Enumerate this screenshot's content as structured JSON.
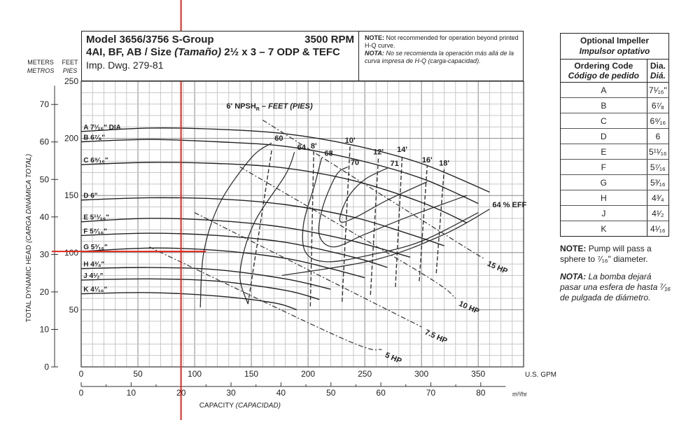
{
  "header": {
    "model": "Model 3656/3756 S-Group",
    "rpm": "3500 RPM",
    "line2_a": "4AI, BF, AB / Size ",
    "line2_b": "(Tamaño)",
    "line2_c": "2½ x 3 – 7 ODP & TEFC",
    "line3": "Imp. Dwg. 279-81",
    "note_label": "NOTE:",
    "note_text": "Not recommended for operation beyond printed H-Q curve.",
    "nota_label": "NOTA:",
    "nota_text": "No se recomienda la operación más allá de la curva impresa de H-Q (carga-capacidad)."
  },
  "impeller_table": {
    "title": "Optional Impeller",
    "title_es": "Impulsor optativo",
    "col1": "Ordering Code",
    "col1_es": "Código de pedido",
    "col2": "Dia.",
    "col2_es": "Diá.",
    "rows": [
      {
        "code": "A",
        "dia": "7¹⁄₁₆\""
      },
      {
        "code": "B",
        "dia": "6⁷⁄₈"
      },
      {
        "code": "C",
        "dia": "6⁹⁄₁₆"
      },
      {
        "code": "D",
        "dia": "6"
      },
      {
        "code": "E",
        "dia": "5¹¹⁄₁₆"
      },
      {
        "code": "F",
        "dia": "5⁷⁄₁₆"
      },
      {
        "code": "G",
        "dia": "5³⁄₁₆"
      },
      {
        "code": "H",
        "dia": "4³⁄₄"
      },
      {
        "code": "J",
        "dia": "4¹⁄₂"
      },
      {
        "code": "K",
        "dia": "4¹⁄₁₆"
      }
    ]
  },
  "notes": {
    "note_label": "NOTE:",
    "note_text": "Pump will pass a sphere to ⁷⁄₁₆\" diameter.",
    "nota_label": "NOTA:",
    "nota_text": "La bomba dejará pasar una esfera de hasta ⁷⁄₁₆ de pulgada de diámetro."
  },
  "chart_data": {
    "type": "line",
    "title": "Model 3656/3756 S-Group 3500 RPM",
    "xlabel": "CAPACITY",
    "xlabel_es": "(CAPACIDAD)",
    "ylabel": "TOTAL DYNAMIC HEAD",
    "ylabel_es": "(CARGA DINÁMICA TOTAL)",
    "x_unit": "U.S. GPM",
    "x2_unit": "m³/hr",
    "y_unit_ft": "FEET",
    "y_unit_ft_es": "PIES",
    "y_unit_m": "METERS",
    "y_unit_m_es": "METROS",
    "xlim": [
      0,
      390
    ],
    "ylim": [
      0,
      250
    ],
    "x_ticks": [
      0,
      50,
      100,
      150,
      200,
      250,
      300,
      350
    ],
    "y_ticks": [
      50,
      100,
      150,
      200,
      250
    ],
    "x2_ticks": [
      0,
      10,
      20,
      30,
      40,
      50,
      60,
      70,
      80
    ],
    "y2_ticks": [
      0,
      10,
      20,
      30,
      40,
      50,
      60,
      70
    ],
    "impeller_curves": [
      {
        "label": "A 7¹⁄₁₆\" DIA.",
        "points": [
          [
            0,
            206
          ],
          [
            60,
            209
          ],
          [
            120,
            208
          ],
          [
            180,
            204
          ],
          [
            240,
            194
          ],
          [
            300,
            178
          ],
          [
            360,
            153
          ]
        ]
      },
      {
        "label": "B 6⁷⁄₈\"",
        "points": [
          [
            0,
            197
          ],
          [
            60,
            199
          ],
          [
            120,
            197
          ],
          [
            180,
            193
          ],
          [
            240,
            182
          ],
          [
            300,
            165
          ],
          [
            350,
            143
          ]
        ]
      },
      {
        "label": "C 6⁹⁄₁₆\"",
        "points": [
          [
            0,
            177
          ],
          [
            60,
            179
          ],
          [
            120,
            178
          ],
          [
            180,
            174
          ],
          [
            240,
            163
          ],
          [
            300,
            144
          ],
          [
            340,
            126
          ]
        ]
      },
      {
        "label": "D 6\"",
        "points": [
          [
            0,
            146
          ],
          [
            60,
            148
          ],
          [
            120,
            147
          ],
          [
            180,
            142
          ],
          [
            240,
            131
          ],
          [
            290,
            116
          ],
          [
            320,
            106
          ]
        ]
      },
      {
        "label": "E 5¹¹⁄₁₆\"",
        "points": [
          [
            0,
            127
          ],
          [
            60,
            130
          ],
          [
            120,
            128
          ],
          [
            180,
            122
          ],
          [
            240,
            110
          ],
          [
            290,
            96
          ]
        ]
      },
      {
        "label": "F 5⁷⁄₁₆\"",
        "points": [
          [
            0,
            115
          ],
          [
            60,
            117
          ],
          [
            120,
            115
          ],
          [
            180,
            109
          ],
          [
            240,
            96
          ],
          [
            270,
            87
          ]
        ]
      },
      {
        "label": "G 5³⁄₁₆\"",
        "points": [
          [
            0,
            101
          ],
          [
            60,
            104
          ],
          [
            120,
            102
          ],
          [
            180,
            95
          ],
          [
            220,
            86
          ],
          [
            250,
            78
          ]
        ]
      },
      {
        "label": "H 4³⁄₄\"",
        "points": [
          [
            0,
            86
          ],
          [
            60,
            87
          ],
          [
            120,
            85
          ],
          [
            180,
            77
          ],
          [
            220,
            68
          ]
        ]
      },
      {
        "label": "J 4¹⁄₂\"",
        "points": [
          [
            0,
            76
          ],
          [
            60,
            77
          ],
          [
            120,
            75
          ],
          [
            180,
            67
          ],
          [
            210,
            59
          ]
        ]
      },
      {
        "label": "K 4¹⁄₁₆\"",
        "points": [
          [
            0,
            64
          ],
          [
            60,
            65
          ],
          [
            120,
            62
          ],
          [
            170,
            56
          ],
          [
            190,
            50
          ]
        ]
      }
    ],
    "efficiency_curves": [
      {
        "label": "60",
        "points": [
          [
            105,
            52
          ],
          [
            108,
            100
          ],
          [
            122,
            143
          ],
          [
            150,
            183
          ],
          [
            168,
            196
          ]
        ]
      },
      {
        "label": "64",
        "points": [
          [
            147,
            55
          ],
          [
            140,
            82
          ],
          [
            152,
            125
          ],
          [
            180,
            168
          ],
          [
            188,
            188
          ]
        ]
      },
      {
        "label": "68",
        "points": [
          [
            350,
            135
          ],
          [
            300,
            110
          ],
          [
            255,
            98
          ],
          [
            217,
            92
          ],
          [
            198,
            100
          ],
          [
            196,
            125
          ],
          [
            206,
            160
          ],
          [
            212,
            183
          ]
        ]
      },
      {
        "label": "70",
        "points": [
          [
            340,
            150
          ],
          [
            290,
            132
          ],
          [
            250,
            116
          ],
          [
            223,
            105
          ],
          [
            210,
            115
          ],
          [
            213,
            140
          ],
          [
            225,
            168
          ],
          [
            235,
            175
          ]
        ]
      },
      {
        "label": "71",
        "points": [
          [
            305,
            162
          ],
          [
            270,
            146
          ],
          [
            240,
            130
          ],
          [
            228,
            128
          ],
          [
            235,
            148
          ],
          [
            250,
            164
          ],
          [
            270,
            174
          ]
        ]
      },
      {
        "label": "64 % EFF",
        "points": [
          [
            177,
            80
          ],
          [
            260,
            94
          ],
          [
            320,
            116
          ],
          [
            360,
            138
          ]
        ]
      }
    ],
    "npsh_lines": [
      {
        "label": "8'",
        "x": [
          202,
          205
        ],
        "y": [
          53,
          188
        ]
      },
      {
        "label": "10'",
        "x": [
          230,
          237
        ],
        "y": [
          57,
          193
        ]
      },
      {
        "label": "12'",
        "x": [
          255,
          262
        ],
        "y": [
          63,
          183
        ]
      },
      {
        "label": "14'",
        "x": [
          277,
          283
        ],
        "y": [
          70,
          185
        ]
      },
      {
        "label": "16'",
        "x": [
          298,
          305
        ],
        "y": [
          75,
          176
        ]
      },
      {
        "label": "18'",
        "x": [
          313,
          320
        ],
        "y": [
          82,
          173
        ]
      }
    ],
    "npsh_title": "6' NPSH",
    "npsh_sub": "R",
    "npsh_unit": "– FEET (PIES)",
    "hp_lines": [
      {
        "label": "15 HP",
        "points": [
          [
            160,
            216
          ],
          [
            330,
            110
          ],
          [
            355,
            95
          ]
        ]
      },
      {
        "label": "10 HP",
        "points": [
          [
            140,
            175
          ],
          [
            300,
            82
          ],
          [
            330,
            60
          ]
        ]
      },
      {
        "label": "7.5 HP",
        "points": [
          [
            100,
            135
          ],
          [
            270,
            50
          ],
          [
            300,
            35
          ]
        ]
      },
      {
        "label": "5 HP",
        "points": [
          [
            60,
            105
          ],
          [
            230,
            25
          ],
          [
            265,
            15
          ]
        ]
      }
    ],
    "operating_point": {
      "gpm": 88,
      "head_ft": 101
    }
  }
}
